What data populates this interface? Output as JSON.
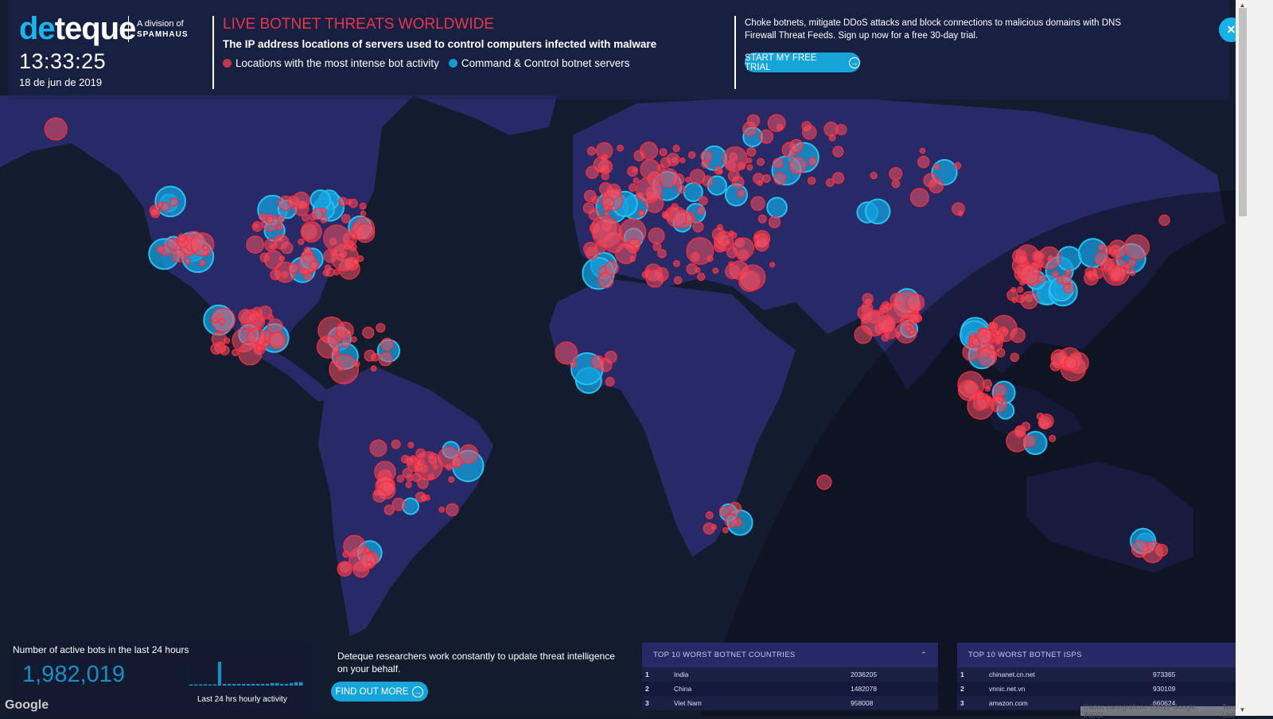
{
  "header": {
    "logo_de": "de",
    "logo_teque": "teque",
    "division_line1": "A division of",
    "division_line2": "SPAMHAUS",
    "clock": "13:33:25",
    "date": "18 de jun de 2019",
    "title": "LIVE BOTNET THREATS WORLDWIDE",
    "subtitle": "The IP address locations of servers used to control computers infected with malware",
    "legend": [
      {
        "label": "Locations with the most intense bot activity",
        "color": "#c0394b"
      },
      {
        "label": "Command & Control botnet servers",
        "color": "#1798d0"
      }
    ],
    "promo_text": "Choke botnets, mitigate DDoS attacks and block connections to malicious domains with DNS Firewall Threat Feeds. Sign up now for a free 30-day trial.",
    "trial_button": "START MY FREE TRIAL",
    "close_icon": "×"
  },
  "bots": {
    "label": "Number of active bots in the last 24 hours",
    "count": "1,982,019",
    "sparkline_label": "Last 24 hrs hourly activity",
    "sparkline_values": [
      1,
      1,
      1,
      1,
      1,
      1,
      28,
      2,
      2,
      2,
      2,
      2,
      2,
      2,
      2,
      2,
      2,
      3,
      3,
      2,
      2,
      3,
      4,
      4
    ]
  },
  "research": {
    "text": "Deteque researchers work constantly to update threat intelligence on your behalf.",
    "button": "FIND OUT MORE"
  },
  "countries_panel": {
    "title": "TOP 10 WORST BOTNET COUNTRIES",
    "rows": [
      {
        "rank": "1",
        "name": "India",
        "value": "2036205"
      },
      {
        "rank": "2",
        "name": "China",
        "value": "1482078"
      },
      {
        "rank": "3",
        "name": "Viet Nam",
        "value": "958008"
      }
    ]
  },
  "isps_panel": {
    "title": "TOP 10 WORST BOTNET ISPS",
    "rows": [
      {
        "rank": "1",
        "name": "chinanet.cn.net",
        "value": "973365"
      },
      {
        "rank": "2",
        "name": "vnnic.net.vn",
        "value": "930109"
      },
      {
        "rank": "3",
        "name": "amazon.com",
        "value": "660624"
      }
    ]
  },
  "map": {
    "google_logo": "Google",
    "attribution": "Dados cartográficos ©2019 Google, INEGI",
    "terms": "Termos de Uso",
    "colors": {
      "land": "#272a66",
      "ocean": "#131c2f",
      "bot": "#ff2a3a",
      "cc": "#1fb3ec"
    }
  }
}
